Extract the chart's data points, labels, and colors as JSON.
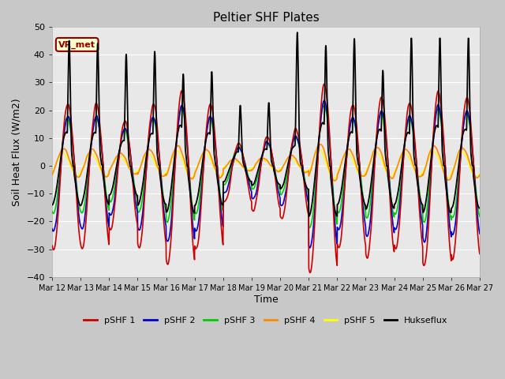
{
  "title": "Peltier SHF Plates",
  "ylabel": "Soil Heat Flux (W/m2)",
  "xlabel": "Time",
  "annotation": "VR_met",
  "ylim": [
    -40,
    50
  ],
  "yticks": [
    -40,
    -30,
    -20,
    -10,
    0,
    10,
    20,
    30,
    40,
    50
  ],
  "xtick_labels": [
    "Mar 12",
    "Mar 13",
    "Mar 14",
    "Mar 15",
    "Mar 16",
    "Mar 17",
    "Mar 18",
    "Mar 19",
    "Mar 20",
    "Mar 21",
    "Mar 22",
    "Mar 23",
    "Mar 24",
    "Mar 25",
    "Mar 26",
    "Mar 27"
  ],
  "series_colors": {
    "pSHF 1": "#cc0000",
    "pSHF 2": "#0000cc",
    "pSHF 3": "#00cc00",
    "pSHF 4": "#ff8800",
    "pSHF 5": "#ffff00",
    "Hukseflux": "#000000"
  },
  "legend_labels": [
    "pSHF 1",
    "pSHF 2",
    "pSHF 3",
    "pSHF 4",
    "pSHF 5",
    "Hukseflux"
  ],
  "fig_bg_color": "#c8c8c8",
  "plot_bg_color": "#e8e8e8",
  "grid_color": "#ffffff",
  "n_days": 15,
  "ppd": 144
}
